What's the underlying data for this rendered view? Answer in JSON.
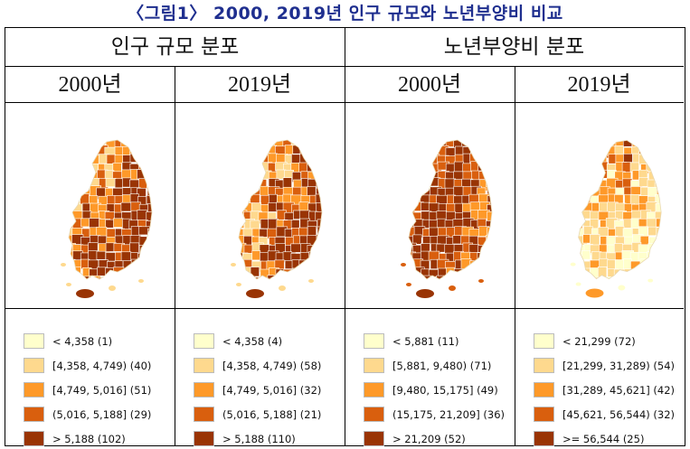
{
  "figure_title": "〈그림1〉 2000, 2019년 인구 규모와 노년부양비 비교",
  "groups": [
    {
      "title": "인구 규모 분포"
    },
    {
      "title": "노년부양비 분포"
    }
  ],
  "panels": [
    {
      "year": "2000년",
      "legend": [
        {
          "label": "< 4,358 (1)",
          "color": "#ffffcc"
        },
        {
          "label": "[4,358, 4,749) (40)",
          "color": "#fed98e"
        },
        {
          "label": "[4,749, 5,016] (51)",
          "color": "#fe9929"
        },
        {
          "label": "(5,016, 5,188] (29)",
          "color": "#d95f0e"
        },
        {
          "label": "> 5,188 (102)",
          "color": "#993404"
        }
      ]
    },
    {
      "year": "2019년",
      "legend": [
        {
          "label": "< 4,358 (4)",
          "color": "#ffffcc"
        },
        {
          "label": "[4,358, 4,749) (58)",
          "color": "#fed98e"
        },
        {
          "label": "[4,749, 5,016] (32)",
          "color": "#fe9929"
        },
        {
          "label": "(5,016, 5,188] (21)",
          "color": "#d95f0e"
        },
        {
          "label": "> 5,188 (110)",
          "color": "#993404"
        }
      ]
    },
    {
      "year": "2000년",
      "legend": [
        {
          "label": "< 5,881 (11)",
          "color": "#ffffcc"
        },
        {
          "label": "[5,881, 9,480) (71)",
          "color": "#fed98e"
        },
        {
          "label": "[9,480, 15,175] (49)",
          "color": "#fe9929"
        },
        {
          "label": "(15,175, 21,209] (36)",
          "color": "#d95f0e"
        },
        {
          "label": "> 21,209 (52)",
          "color": "#993404"
        }
      ]
    },
    {
      "year": "2019년",
      "legend": [
        {
          "label": "< 21,299 (72)",
          "color": "#ffffcc"
        },
        {
          "label": "[21,299, 31,289) (54)",
          "color": "#fed98e"
        },
        {
          "label": "[31,289, 45,621] (42)",
          "color": "#fe9929"
        },
        {
          "label": "[45,621, 56,544) (32)",
          "color": "#d95f0e"
        },
        {
          "label": ">= 56,544 (25)",
          "color": "#993404"
        }
      ]
    }
  ]
}
